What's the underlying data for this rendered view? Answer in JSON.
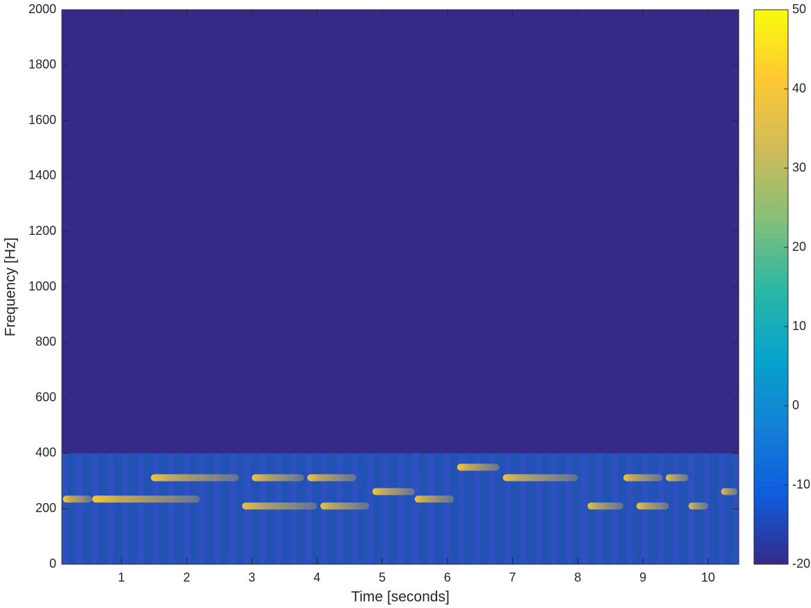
{
  "chart_data": {
    "type": "spectrogram",
    "xlabel": "Time [seconds]",
    "ylabel": "Frequency [Hz]",
    "xlim": [
      0.085,
      10.47
    ],
    "xticks": [
      1,
      2,
      3,
      4,
      5,
      6,
      7,
      8,
      9,
      10
    ],
    "ylim": [
      0,
      2000
    ],
    "yticks": [
      0,
      200,
      400,
      600,
      800,
      1000,
      1200,
      1400,
      1600,
      1800,
      2000
    ],
    "clim": [
      -20,
      50
    ],
    "cticks": [
      -20,
      -10,
      0,
      10,
      20,
      30,
      40,
      50
    ],
    "colormap": "parula",
    "band": {
      "freq": [
        0,
        400
      ],
      "level": -6
    },
    "notes": {
      "start": [
        0.1,
        0.55,
        1.45,
        2.85,
        3.0,
        3.85,
        4.05,
        4.85,
        5.5,
        6.15,
        6.85,
        8.15,
        8.7,
        8.9,
        9.35,
        9.7,
        10.2
      ],
      "end": [
        0.55,
        2.2,
        2.8,
        4.0,
        3.8,
        4.6,
        4.8,
        5.5,
        6.1,
        6.8,
        8.0,
        8.7,
        9.3,
        9.4,
        9.7,
        10.0,
        10.45
      ],
      "freq": [
        235,
        235,
        312,
        210,
        312,
        312,
        210,
        262,
        235,
        350,
        312,
        210,
        312,
        210,
        312,
        210,
        262
      ],
      "level": [
        40,
        40,
        38,
        36,
        38,
        38,
        36,
        40,
        38,
        40,
        36,
        36,
        38,
        38,
        38,
        36,
        38
      ]
    }
  }
}
